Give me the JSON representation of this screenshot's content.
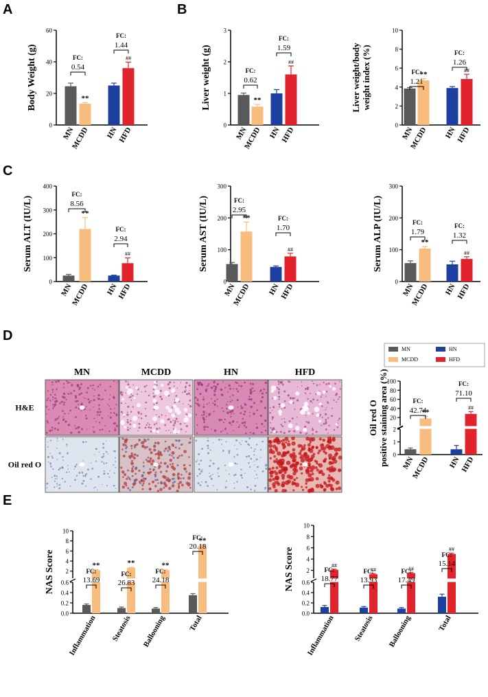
{
  "colors": {
    "MN": "#595959",
    "MCDD": "#f8bc7e",
    "HN": "#1c3fa0",
    "HFD": "#e3232c"
  },
  "panel_letters": [
    "A",
    "B",
    "C",
    "D",
    "E"
  ],
  "histology": {
    "columns": [
      "MN",
      "MCDD",
      "HN",
      "HFD"
    ],
    "rows": [
      "H&E",
      "Oil red O"
    ]
  },
  "legend": [
    "MN",
    "HN",
    "MCDD",
    "HFD"
  ],
  "chart_data": [
    {
      "id": "bw",
      "type": "bar",
      "ylabel": "Body Weight (g)",
      "ylim": [
        0,
        60
      ],
      "yticks": [
        "0",
        "20",
        "40",
        "60"
      ],
      "categories": [
        "MN",
        "MCDD",
        "HN",
        "HFD"
      ],
      "values": [
        24.5,
        13.5,
        25,
        36
      ],
      "errors": [
        2,
        0.7,
        1.5,
        3.8
      ],
      "stars": [
        "",
        "**",
        "",
        "##"
      ],
      "fc": [
        {
          "label": "FC:",
          "value": "0.54"
        },
        {
          "label": "FC:",
          "value": "1.44"
        }
      ]
    },
    {
      "id": "lw",
      "type": "bar",
      "ylabel": "Liver weight (g)",
      "ylim": [
        0,
        3
      ],
      "yticks": [
        "0",
        "1",
        "2",
        "3"
      ],
      "categories": [
        "MN",
        "MCDD",
        "HN",
        "HFD"
      ],
      "values": [
        0.95,
        0.58,
        1.0,
        1.6
      ],
      "errors": [
        0.06,
        0.07,
        0.12,
        0.27
      ],
      "stars": [
        "",
        "**",
        "",
        "##"
      ],
      "fc": [
        {
          "label": "FC:",
          "value": "0.62"
        },
        {
          "label": "FC:",
          "value": "1.59"
        }
      ]
    },
    {
      "id": "lwi",
      "type": "bar",
      "ylabel": "Liver weight/body weight index (%)",
      "ylim": [
        0,
        10
      ],
      "yticks": [
        "0",
        "2",
        "4",
        "6",
        "8",
        "10"
      ],
      "categories": [
        "MN",
        "MCDD",
        "HN",
        "HFD"
      ],
      "values": [
        3.85,
        4.7,
        3.9,
        4.85
      ],
      "errors": [
        0.1,
        0.2,
        0.15,
        0.5
      ],
      "stars": [
        "",
        "**",
        "",
        "##"
      ],
      "fc": [
        {
          "label": "FC:",
          "value": "1.21"
        },
        {
          "label": "FC:",
          "value": "1.26"
        }
      ]
    },
    {
      "id": "alt",
      "type": "bar",
      "ylabel": "Serum ALT (IU/L)",
      "ylim": [
        0,
        400
      ],
      "yticks": [
        "0",
        "100",
        "200",
        "300",
        "400"
      ],
      "categories": [
        "MN",
        "MCDD",
        "HN",
        "HFD"
      ],
      "values": [
        25,
        220,
        25,
        77
      ],
      "errors": [
        5,
        48,
        2,
        22
      ],
      "stars": [
        "",
        "**",
        "",
        "##"
      ],
      "fc": [
        {
          "label": "FC:",
          "value": "8.56"
        },
        {
          "label": "FC:",
          "value": "2.94"
        }
      ]
    },
    {
      "id": "ast",
      "type": "bar",
      "ylabel": "Serum AST (IU/L)",
      "ylim": [
        0,
        300
      ],
      "yticks": [
        "0",
        "100",
        "200",
        "300"
      ],
      "categories": [
        "MN",
        "MCDD",
        "HN",
        "HFD"
      ],
      "values": [
        55,
        157,
        46,
        79
      ],
      "errors": [
        5,
        30,
        3,
        10
      ],
      "stars": [
        "",
        "**",
        "",
        "##"
      ],
      "fc": [
        {
          "label": "FC:",
          "value": "2.95"
        },
        {
          "label": "FC:",
          "value": "1.70"
        }
      ]
    },
    {
      "id": "alp",
      "type": "bar",
      "ylabel": "Serum ALP (IU/L)",
      "ylim": [
        0,
        300
      ],
      "yticks": [
        "0",
        "100",
        "200",
        "300"
      ],
      "categories": [
        "MN",
        "MCDD",
        "HN",
        "HFD"
      ],
      "values": [
        58,
        104,
        54,
        71
      ],
      "errors": [
        7,
        6,
        10,
        7
      ],
      "stars": [
        "",
        "**",
        "",
        "##"
      ],
      "fc": [
        {
          "label": "FC:",
          "value": "1.79"
        },
        {
          "label": "FC:",
          "value": "1.32"
        }
      ]
    },
    {
      "id": "oil",
      "type": "bar",
      "ylabel": "Oil red O positive staining area (%)",
      "ylim": [
        0,
        100
      ],
      "break": {
        "lower": [
          0,
          2
        ],
        "upper": [
          2,
          100
        ]
      },
      "yticks": [
        "0",
        "1",
        "2",
        "20",
        "40",
        "60",
        "80",
        "100"
      ],
      "categories": [
        "MN",
        "MCDD",
        "HN",
        "HFD"
      ],
      "values": [
        0.42,
        18,
        0.42,
        28
      ],
      "errors": [
        0.1,
        4,
        0.3,
        5
      ],
      "stars": [
        "",
        "**",
        "",
        "##"
      ],
      "fc": [
        {
          "label": "FC:",
          "value": "42.74"
        },
        {
          "label": "FC:",
          "value": "71.10"
        }
      ]
    },
    {
      "id": "nas_mcdd",
      "type": "bar",
      "ylabel": "NAS Score",
      "ylim": [
        0,
        10
      ],
      "break": {
        "lower": [
          0,
          0.6
        ],
        "upper": [
          0.6,
          10
        ]
      },
      "yticks": [
        "0.0",
        "0.2",
        "0.4",
        "0.6",
        "2",
        "4",
        "6",
        "8",
        "10"
      ],
      "categories": [
        "Inflammation",
        "Steatosis",
        "Ballooning",
        "Total"
      ],
      "series": [
        {
          "name": "MN",
          "values": [
            0.16,
            0.1,
            0.09,
            0.35
          ],
          "errors": [
            0.02,
            0.02,
            0.02,
            0.03
          ]
        },
        {
          "name": "MCDD",
          "values": [
            2.19,
            2.68,
            2.18,
            7.06
          ],
          "errors": [
            0.1,
            0.1,
            0.1,
            0.15
          ]
        }
      ],
      "stars": [
        "**",
        "**",
        "**",
        "**"
      ],
      "fc": [
        {
          "label": "FC:",
          "value": "13.69"
        },
        {
          "label": "FC:",
          "value": "26.83"
        },
        {
          "label": "FC:",
          "value": "24.18"
        },
        {
          "label": "FC:",
          "value": "20.18"
        }
      ]
    },
    {
      "id": "nas_hfd",
      "type": "bar",
      "ylabel": "NAS Score",
      "ylim": [
        0,
        10
      ],
      "break": {
        "lower": [
          0,
          0.6
        ],
        "upper": [
          0.6,
          10
        ]
      },
      "yticks": [
        "0.0",
        "0.2",
        "0.4",
        "0.6",
        "2",
        "4",
        "6",
        "8",
        "10"
      ],
      "categories": [
        "Inflammation",
        "Steatosis",
        "Ballooning",
        "Total"
      ],
      "series": [
        {
          "name": "HN",
          "values": [
            0.12,
            0.11,
            0.09,
            0.32
          ],
          "errors": [
            0.03,
            0.02,
            0.02,
            0.05
          ]
        },
        {
          "name": "HFD",
          "values": [
            2.1,
            1.3,
            1.5,
            4.9
          ],
          "errors": [
            0.1,
            0.1,
            0.1,
            0.15
          ]
        }
      ],
      "stars": [
        "##",
        "##",
        "##",
        "##"
      ],
      "fc": [
        {
          "label": "FC:",
          "value": "18.77"
        },
        {
          "label": "FC:",
          "value": "13.93"
        },
        {
          "label": "FC:",
          "value": "17.49"
        },
        {
          "label": "FC:",
          "value": "15.14"
        }
      ]
    }
  ]
}
